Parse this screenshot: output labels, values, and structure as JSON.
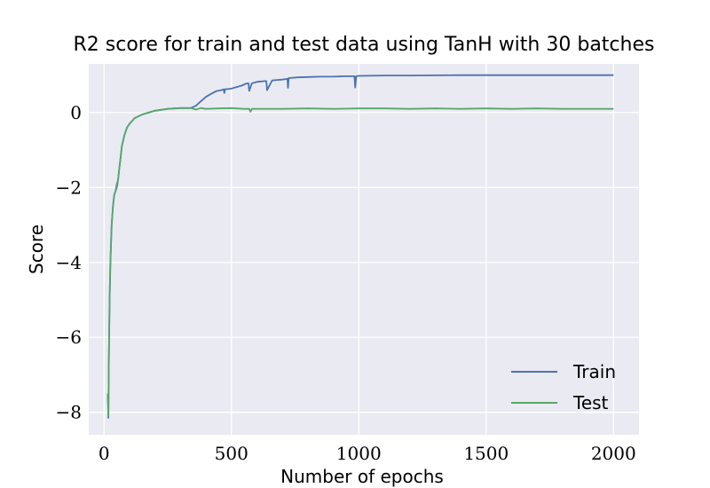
{
  "chart_data": {
    "type": "line",
    "title": "R2 score for train and test data using TanH with 30 batches",
    "xlabel": "Number of epochs",
    "ylabel": "Score",
    "xlim": [
      -60,
      2100
    ],
    "ylim": [
      -8.6,
      1.3
    ],
    "xticks": [
      {
        "value": 0,
        "label": "0"
      },
      {
        "value": 500,
        "label": "500"
      },
      {
        "value": 1000,
        "label": "1000"
      },
      {
        "value": 1500,
        "label": "1500"
      },
      {
        "value": 2000,
        "label": "2000"
      }
    ],
    "yticks": [
      {
        "value": 0,
        "label": "0"
      },
      {
        "value": -2,
        "label": "−2"
      },
      {
        "value": -4,
        "label": "−4"
      },
      {
        "value": -6,
        "label": "−6"
      },
      {
        "value": -8,
        "label": "−8"
      }
    ],
    "grid": true,
    "legend_position": "bottom-right",
    "background": "#eaeaf2",
    "series": [
      {
        "name": "Train",
        "color": "#4c72b0",
        "x": [
          15,
          17,
          19,
          22,
          25,
          30,
          35,
          40,
          45,
          50,
          55,
          60,
          65,
          70,
          80,
          90,
          100,
          120,
          150,
          200,
          250,
          300,
          340,
          360,
          380,
          400,
          420,
          440,
          460,
          470,
          472,
          475,
          500,
          540,
          560,
          567,
          570,
          580,
          600,
          630,
          637,
          640,
          660,
          700,
          720,
          722,
          725,
          760,
          800,
          850,
          900,
          950,
          980,
          983,
          986,
          990,
          1000,
          1100,
          1200,
          1400,
          1600,
          1800,
          2000
        ],
        "y": [
          -7.5,
          -8.15,
          -6.5,
          -5.0,
          -4.0,
          -3.0,
          -2.5,
          -2.2,
          -2.1,
          -2.0,
          -1.8,
          -1.5,
          -1.2,
          -0.9,
          -0.6,
          -0.4,
          -0.3,
          -0.15,
          -0.05,
          0.05,
          0.1,
          0.12,
          0.12,
          0.18,
          0.3,
          0.42,
          0.5,
          0.57,
          0.6,
          0.62,
          0.52,
          0.62,
          0.64,
          0.72,
          0.78,
          0.78,
          0.58,
          0.78,
          0.82,
          0.84,
          0.84,
          0.6,
          0.86,
          0.88,
          0.9,
          0.66,
          0.92,
          0.94,
          0.95,
          0.96,
          0.96,
          0.97,
          0.97,
          0.97,
          0.67,
          0.97,
          0.98,
          0.99,
          0.99,
          1.0,
          1.0,
          1.0,
          1.0
        ]
      },
      {
        "name": "Test",
        "color": "#55a868",
        "x": [
          15,
          17,
          19,
          22,
          25,
          30,
          35,
          40,
          45,
          50,
          55,
          60,
          65,
          70,
          80,
          90,
          100,
          120,
          150,
          200,
          250,
          300,
          340,
          360,
          380,
          400,
          450,
          500,
          550,
          570,
          575,
          580,
          600,
          700,
          800,
          900,
          1000,
          1100,
          1200,
          1300,
          1400,
          1500,
          1600,
          1700,
          1800,
          1900,
          2000
        ],
        "y": [
          -7.5,
          -8.1,
          -6.5,
          -5.0,
          -4.0,
          -3.0,
          -2.5,
          -2.2,
          -2.1,
          -1.9,
          -1.8,
          -1.5,
          -1.2,
          -0.9,
          -0.6,
          -0.4,
          -0.3,
          -0.15,
          -0.05,
          0.05,
          0.1,
          0.12,
          0.12,
          0.08,
          0.12,
          0.1,
          0.11,
          0.12,
          0.1,
          0.1,
          0.02,
          0.1,
          0.1,
          0.1,
          0.11,
          0.1,
          0.11,
          0.11,
          0.1,
          0.11,
          0.1,
          0.11,
          0.1,
          0.11,
          0.1,
          0.1,
          0.1
        ]
      }
    ]
  }
}
